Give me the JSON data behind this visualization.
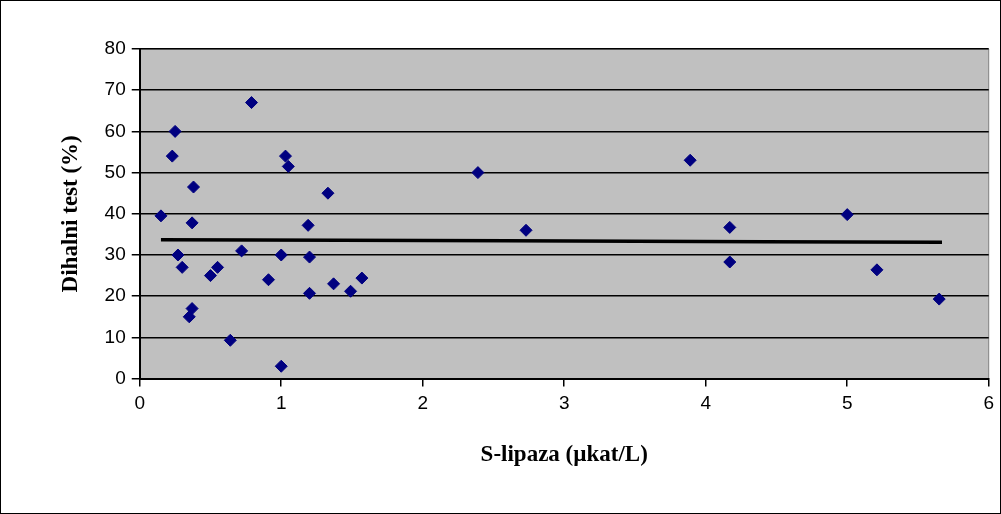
{
  "chart_data": {
    "type": "scatter",
    "xlabel": "S-lipaza (µkat/L)",
    "ylabel": "Dihalni test (%)",
    "xlim": [
      0,
      6
    ],
    "xticks": [
      0,
      1,
      2,
      3,
      4,
      5,
      6
    ],
    "ylim": [
      0,
      80
    ],
    "yticks": [
      0,
      10,
      20,
      30,
      40,
      50,
      60,
      70,
      80
    ],
    "grid": "y",
    "legend": false,
    "marker": "diamond",
    "series": [
      {
        "color": "#000080",
        "x": [
          0.15,
          0.25,
          0.23,
          0.38,
          0.37,
          0.27,
          0.3,
          0.37,
          0.35,
          0.5,
          0.55,
          0.64,
          0.72,
          0.79,
          0.91,
          1.0,
          1.0,
          1.03,
          1.05,
          1.19,
          1.2,
          1.2,
          1.33,
          1.37,
          1.49,
          1.57,
          2.39,
          2.73,
          3.89,
          4.17,
          4.17,
          5.0,
          5.21,
          5.65
        ],
        "values": [
          39.5,
          60,
          54,
          46.5,
          37.8,
          30,
          27,
          17,
          15,
          25,
          27,
          9.3,
          31,
          67,
          24,
          30,
          3,
          54,
          51.5,
          37.2,
          29.5,
          20.7,
          45,
          23,
          21.2,
          24.4,
          50,
          36,
          53,
          36.7,
          28.3,
          39.8,
          26.4,
          19.3
        ]
      },
      {
        "type": "line",
        "color": "#000000",
        "marker": "none",
        "x": [
          0.15,
          5.67
        ],
        "values": [
          33.7,
          33.1
        ]
      }
    ]
  }
}
